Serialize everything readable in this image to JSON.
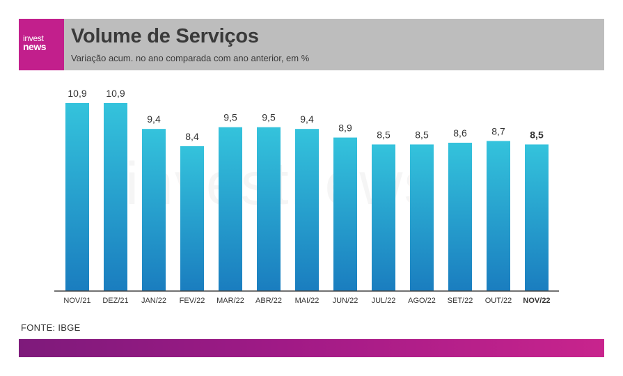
{
  "header": {
    "logo_top": "invest",
    "logo_bottom": "news",
    "title": "Volume de Serviços",
    "subtitle": "Variação acum. no ano comparada com ano anterior, em %"
  },
  "watermark": "investnews",
  "source": "FONTE: IBGE",
  "colors": {
    "bar_top": "#34c3dc",
    "bar_bottom": "#1a7dbf",
    "header_bg": "#bdbdbd",
    "logo_bg": "#c21f8c",
    "footer_start": "#7e1a7b",
    "footer_end": "#c8248d"
  },
  "chart_data": {
    "type": "bar",
    "categories": [
      "NOV/21",
      "DEZ/21",
      "JAN/22",
      "FEV/22",
      "MAR/22",
      "ABR/22",
      "MAI/22",
      "JUN/22",
      "JUL/22",
      "AGO/22",
      "SET/22",
      "OUT/22",
      "NOV/22"
    ],
    "values": [
      10.9,
      10.9,
      9.4,
      8.4,
      9.5,
      9.5,
      9.4,
      8.9,
      8.5,
      8.5,
      8.6,
      8.7,
      8.5
    ],
    "value_labels": [
      "10,9",
      "10,9",
      "9,4",
      "8,4",
      "9,5",
      "9,5",
      "9,4",
      "8,9",
      "8,5",
      "8,5",
      "8,6",
      "8,7",
      "8,5"
    ],
    "highlight_index": 12,
    "ylim": [
      0,
      10.9
    ],
    "grid": false,
    "title": "Volume de Serviços",
    "xlabel": "",
    "ylabel": ""
  }
}
